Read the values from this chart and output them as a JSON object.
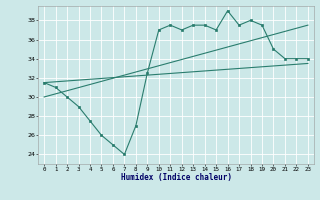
{
  "xlabel": "Humidex (Indice chaleur)",
  "bg_color": "#cce8e8",
  "grid_color": "#ffffff",
  "line_color": "#2a7d6e",
  "xlim": [
    -0.5,
    23.5
  ],
  "ylim": [
    23.0,
    39.5
  ],
  "yticks": [
    24,
    26,
    28,
    30,
    32,
    34,
    36,
    38
  ],
  "xticks": [
    0,
    1,
    2,
    3,
    4,
    5,
    6,
    7,
    8,
    9,
    10,
    11,
    12,
    13,
    14,
    15,
    16,
    17,
    18,
    19,
    20,
    21,
    22,
    23
  ],
  "line1_x": [
    0,
    1,
    2,
    3,
    4,
    5,
    6,
    7,
    8,
    9,
    10,
    11,
    12,
    13,
    14,
    15,
    16,
    17,
    18,
    19,
    20,
    21,
    22,
    23
  ],
  "line1_y": [
    31.5,
    31.0,
    30.0,
    29.0,
    27.5,
    26.0,
    25.0,
    24.0,
    27.0,
    32.5,
    37.0,
    37.5,
    37.0,
    37.5,
    37.5,
    37.0,
    39.0,
    37.5,
    38.0,
    37.5,
    35.0,
    34.0,
    34.0,
    34.0
  ],
  "line2_x": [
    0,
    23
  ],
  "line2_y": [
    31.5,
    33.5
  ],
  "line3_x": [
    0,
    23
  ],
  "line3_y": [
    30.0,
    37.5
  ]
}
